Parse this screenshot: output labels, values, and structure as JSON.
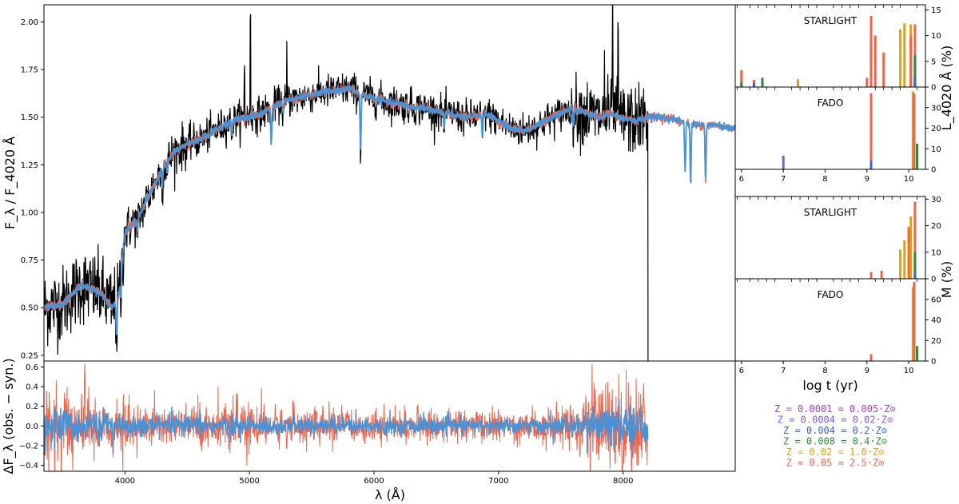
{
  "chart_data": [
    {
      "id": "spectrum",
      "type": "line",
      "ylabel": "F_λ / F_4020 Å",
      "xlim": [
        3350,
        8900
      ],
      "ylim": [
        0.22,
        2.09
      ],
      "yticks": [
        0.25,
        0.5,
        0.75,
        1.0,
        1.25,
        1.5,
        1.75,
        2.0
      ],
      "ytick_labels": [
        "0.25",
        "0.50",
        "0.75",
        "1.00",
        "1.25",
        "1.50",
        "1.75",
        "2.00"
      ],
      "obs_cutoff": 8200,
      "continuum": {
        "x": [
          3350,
          3500,
          3650,
          3800,
          3900,
          3950,
          4000,
          4100,
          4200,
          4300,
          4400,
          4500,
          4600,
          4700,
          4800,
          4900,
          5000,
          5100,
          5200,
          5300,
          5400,
          5500,
          5600,
          5700,
          5800,
          5900,
          6000,
          6100,
          6200,
          6300,
          6400,
          6500,
          6600,
          6700,
          6800,
          6900,
          7000,
          7100,
          7200,
          7300,
          7400,
          7500,
          7600,
          7700,
          7800,
          7900,
          8000,
          8100,
          8200,
          8300,
          8400,
          8500,
          8600,
          8700,
          8800,
          8900
        ],
        "y": [
          0.5,
          0.52,
          0.62,
          0.58,
          0.5,
          0.56,
          0.9,
          0.96,
          1.1,
          1.23,
          1.32,
          1.36,
          1.38,
          1.42,
          1.46,
          1.49,
          1.5,
          1.52,
          1.56,
          1.59,
          1.6,
          1.62,
          1.63,
          1.64,
          1.65,
          1.62,
          1.6,
          1.58,
          1.57,
          1.55,
          1.55,
          1.53,
          1.52,
          1.5,
          1.5,
          1.52,
          1.48,
          1.44,
          1.43,
          1.45,
          1.49,
          1.52,
          1.55,
          1.52,
          1.5,
          1.52,
          1.49,
          1.48,
          1.5,
          1.5,
          1.49,
          1.47,
          1.46,
          1.46,
          1.45,
          1.44
        ]
      },
      "absorption_lines": [
        {
          "x": 3933,
          "depth": 0.18
        },
        {
          "x": 3968,
          "depth": 0.12
        },
        {
          "x": 4101,
          "depth": 0.06
        },
        {
          "x": 4300,
          "depth": 0.1
        },
        {
          "x": 4340,
          "depth": 0.07
        },
        {
          "x": 4861,
          "depth": 0.06
        },
        {
          "x": 5175,
          "depth": 0.2
        },
        {
          "x": 5270,
          "depth": 0.06
        },
        {
          "x": 5892,
          "depth": 0.3
        },
        {
          "x": 6563,
          "depth": 0.08
        },
        {
          "x": 6870,
          "depth": 0.12
        },
        {
          "x": 7600,
          "depth": 0.1
        },
        {
          "x": 8498,
          "depth": 0.26
        },
        {
          "x": 8542,
          "depth": 0.32
        },
        {
          "x": 8662,
          "depth": 0.3
        }
      ],
      "emission_spikes": [
        {
          "x": 4959,
          "height": 0.28
        },
        {
          "x": 5007,
          "height": 0.55
        },
        {
          "x": 5300,
          "height": 0.3
        },
        {
          "x": 6300,
          "height": 0.08
        },
        {
          "x": 7850,
          "height": 0.35
        },
        {
          "x": 7915,
          "height": 0.55
        },
        {
          "x": 7960,
          "height": 0.4
        }
      ],
      "series": [
        {
          "name": "obs",
          "color": "#000000"
        },
        {
          "name": "fit_red",
          "color": "#f0634a"
        },
        {
          "name": "fit_blue",
          "color": "#4a92d6"
        }
      ]
    },
    {
      "id": "residuals",
      "type": "line",
      "xlabel": "λ (Å)",
      "ylabel": "ΔF_λ (obs. − syn.)",
      "xlim": [
        3350,
        8900
      ],
      "ylim": [
        -0.46,
        0.66
      ],
      "xticks": [
        4000,
        5000,
        6000,
        7000,
        8000
      ],
      "xtick_labels": [
        "4000",
        "5000",
        "6000",
        "7000",
        "8000"
      ],
      "yticks": [
        -0.4,
        -0.2,
        0.0,
        0.2,
        0.4,
        0.6
      ],
      "ytick_labels": [
        "−0.4",
        "−0.2",
        "0.0",
        "0.2",
        "0.4",
        "0.6"
      ],
      "noise_profile": {
        "x": [
          3350,
          3700,
          4000,
          4500,
          5000,
          6000,
          7000,
          7600,
          7800,
          8000,
          8200
        ],
        "red_amp": [
          0.3,
          0.22,
          0.15,
          0.13,
          0.13,
          0.1,
          0.1,
          0.14,
          0.28,
          0.32,
          0.3
        ],
        "blue_amp": [
          0.12,
          0.1,
          0.07,
          0.07,
          0.06,
          0.05,
          0.05,
          0.06,
          0.12,
          0.14,
          0.12
        ]
      }
    },
    {
      "id": "lum-starlight",
      "type": "bar",
      "title": "STARLIGHT",
      "xlim": [
        5.85,
        10.4
      ],
      "ylim": [
        0,
        16
      ],
      "yticks": [
        0,
        5,
        10,
        15
      ],
      "ytick_labels": [
        "0",
        "5",
        "10",
        "15"
      ],
      "bars": [
        {
          "x": 6.0,
          "value": 3.3,
          "z": 5
        },
        {
          "x": 6.0,
          "value": 1.0,
          "z": 3
        },
        {
          "x": 6.3,
          "value": 1.4,
          "z": 5
        },
        {
          "x": 6.3,
          "value": 0.8,
          "z": 2
        },
        {
          "x": 6.5,
          "value": 1.8,
          "z": 3
        },
        {
          "x": 7.35,
          "value": 1.5,
          "z": 4
        },
        {
          "x": 9.0,
          "value": 1.8,
          "z": 5
        },
        {
          "x": 9.1,
          "value": 13.8,
          "z": 5
        },
        {
          "x": 9.2,
          "value": 10.0,
          "z": 5
        },
        {
          "x": 9.4,
          "value": 6.7,
          "z": 5
        },
        {
          "x": 9.8,
          "value": 11.2,
          "z": 4
        },
        {
          "x": 9.9,
          "value": 12.4,
          "z": 4
        },
        {
          "x": 10.05,
          "value": 12.2,
          "z": 4
        },
        {
          "x": 10.05,
          "value": 10.0,
          "z": 5
        },
        {
          "x": 10.15,
          "value": 12.2,
          "z": 5
        },
        {
          "x": 10.15,
          "value": 6.2,
          "z": 3
        },
        {
          "x": 10.15,
          "value": 2.0,
          "z": 2
        }
      ]
    },
    {
      "id": "lum-fado",
      "type": "bar",
      "title": "FADO",
      "xlim": [
        5.85,
        10.4
      ],
      "ylim": [
        0,
        40
      ],
      "yticks": [
        0,
        10,
        20,
        30
      ],
      "ytick_labels": [
        "0",
        "10",
        "20",
        "30"
      ],
      "bars": [
        {
          "x": 7.0,
          "value": 6.6,
          "z": 1
        },
        {
          "x": 9.1,
          "value": 37.0,
          "z": 5
        },
        {
          "x": 9.1,
          "value": 4.2,
          "z": 2
        },
        {
          "x": 10.1,
          "value": 38.0,
          "z": 4
        },
        {
          "x": 10.13,
          "value": 36.8,
          "z": 5
        },
        {
          "x": 10.2,
          "value": 12.5,
          "z": 3
        }
      ]
    },
    {
      "id": "mass-starlight",
      "type": "bar",
      "title": "STARLIGHT",
      "xlim": [
        5.85,
        10.4
      ],
      "ylim": [
        0,
        31
      ],
      "yticks": [
        0,
        10,
        20,
        30
      ],
      "ytick_labels": [
        "0",
        "10",
        "20",
        "30"
      ],
      "bars": [
        {
          "x": 9.1,
          "value": 2.5,
          "z": 5
        },
        {
          "x": 9.35,
          "value": 3.0,
          "z": 5
        },
        {
          "x": 9.8,
          "value": 11.0,
          "z": 4
        },
        {
          "x": 9.9,
          "value": 14.5,
          "z": 4
        },
        {
          "x": 10.0,
          "value": 19.5,
          "z": 5
        },
        {
          "x": 10.05,
          "value": 23.5,
          "z": 4
        },
        {
          "x": 10.15,
          "value": 29.0,
          "z": 5
        },
        {
          "x": 10.15,
          "value": 10.0,
          "z": 3
        },
        {
          "x": 10.15,
          "value": 2.5,
          "z": 2
        }
      ]
    },
    {
      "id": "mass-fado",
      "type": "bar",
      "title": "FADO",
      "xlabel": "log t (yr)",
      "xlim": [
        5.85,
        10.4
      ],
      "ylim": [
        0,
        80
      ],
      "yticks": [
        0,
        20,
        40,
        60
      ],
      "ytick_labels": [
        "0",
        "20",
        "40",
        "60"
      ],
      "xticks": [
        6,
        7,
        8,
        9,
        10
      ],
      "xtick_labels": [
        "6",
        "7",
        "8",
        "9",
        "10"
      ],
      "bars": [
        {
          "x": 9.1,
          "value": 6.5,
          "z": 5
        },
        {
          "x": 10.1,
          "value": 72.0,
          "z": 4
        },
        {
          "x": 10.13,
          "value": 77.0,
          "z": 5
        },
        {
          "x": 10.2,
          "value": 14.5,
          "z": 3
        }
      ]
    }
  ],
  "right_labels": {
    "luminosity": "L_4020 Å (%)",
    "mass": "M (%)"
  },
  "metallicity_legend": [
    {
      "label": "Z = 0.0001 = 0.005·Z⊙",
      "color": "#9a3fd0"
    },
    {
      "label": "Z = 0.0004 = 0.02·Z⊙",
      "color": "#7b5be0"
    },
    {
      "label": "Z = 0.004 = 0.2·Z⊙",
      "color": "#3d5fd6"
    },
    {
      "label": "Z = 0.008 = 0.4·Z⊙",
      "color": "#2e8b3e"
    },
    {
      "label": "Z = 0.02 = 1.0·Z⊙",
      "color": "#d9a21b"
    },
    {
      "label": "Z = 0.05 = 2.5·Z⊙",
      "color": "#f0634a"
    }
  ]
}
